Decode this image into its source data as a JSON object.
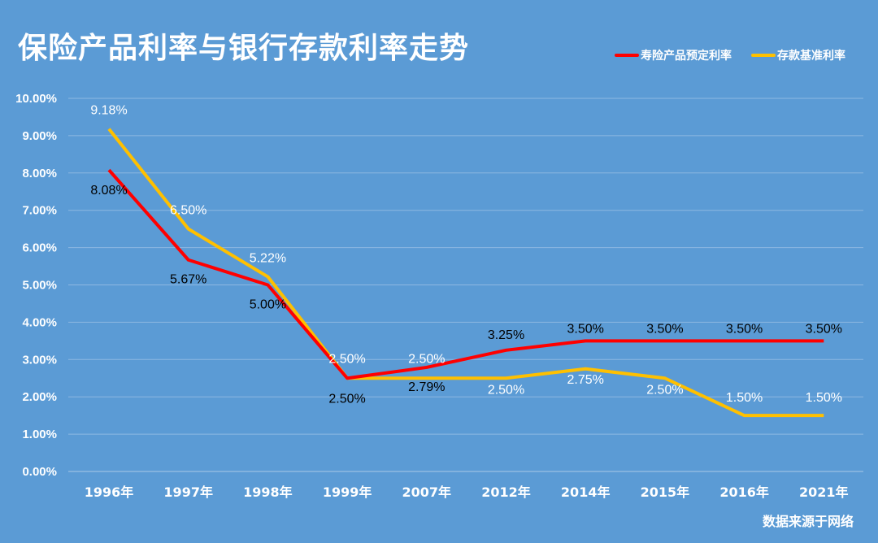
{
  "chart_data": {
    "type": "line",
    "title": "保险产品利率与银行存款利率走势",
    "categories": [
      "1996年",
      "1997年",
      "1998年",
      "1999年",
      "2007年",
      "2012年",
      "2014年",
      "2015年",
      "2016年",
      "2021年"
    ],
    "series": [
      {
        "name": "寿险产品预定利率",
        "color": "#ff0000",
        "values": [
          8.08,
          5.67,
          5.0,
          2.5,
          2.79,
          3.25,
          3.5,
          3.5,
          3.5,
          3.5
        ],
        "labels": [
          "8.08%",
          "5.67%",
          "5.00%",
          "2.50%",
          "2.79%",
          "3.25%",
          "3.50%",
          "3.50%",
          "3.50%",
          "3.50%"
        ],
        "label_color": "#000000"
      },
      {
        "name": "存款基准利率",
        "color": "#ffc000",
        "values": [
          9.18,
          6.5,
          5.22,
          2.5,
          2.5,
          2.5,
          2.75,
          2.5,
          1.5,
          1.5
        ],
        "labels": [
          "9.18%",
          "6.50%",
          "5.22%",
          "2.50%",
          "2.50%",
          "2.50%",
          "2.75%",
          "2.50%",
          "1.50%",
          "1.50%"
        ],
        "label_color": "#ffffff"
      }
    ],
    "ylim": [
      0,
      10
    ],
    "yticks": [
      "0.00%",
      "1.00%",
      "2.00%",
      "3.00%",
      "4.00%",
      "5.00%",
      "6.00%",
      "7.00%",
      "8.00%",
      "9.00%",
      "10.00%"
    ],
    "grid": true,
    "legend": "top-right",
    "source": "数据来源于网络",
    "background": "#5b9bd5"
  }
}
